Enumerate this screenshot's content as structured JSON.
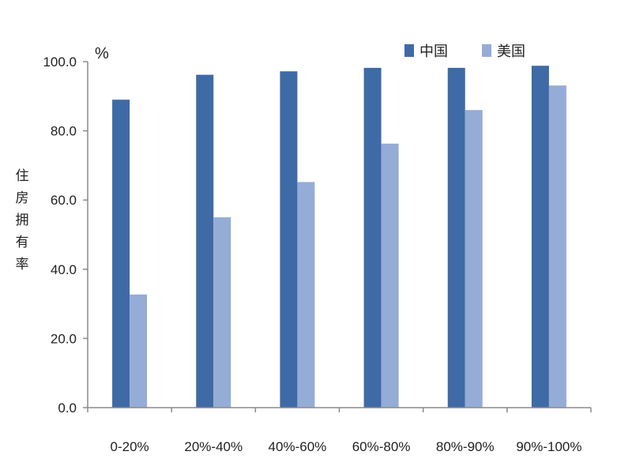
{
  "chart_data": {
    "type": "bar",
    "unit": "%",
    "ylabel": "住房拥有率",
    "xlabel": "",
    "title": "",
    "categories": [
      "0-20%",
      "20%-40%",
      "40%-60%",
      "60%-80%",
      "80%-90%",
      "90%-100%"
    ],
    "series": [
      {
        "name": "中国",
        "color": "#3e6aa6",
        "values": [
          89.0,
          96.2,
          97.2,
          98.2,
          98.2,
          98.8
        ]
      },
      {
        "name": "美国",
        "color": "#95acd6",
        "values": [
          32.7,
          55.0,
          65.2,
          76.3,
          86.0,
          93.1
        ]
      }
    ],
    "ylim": [
      0,
      100
    ],
    "yticks": [
      "0.0",
      "20.0",
      "40.0",
      "60.0",
      "80.0",
      "100.0"
    ],
    "legend_position": "top-right",
    "grid": false
  }
}
